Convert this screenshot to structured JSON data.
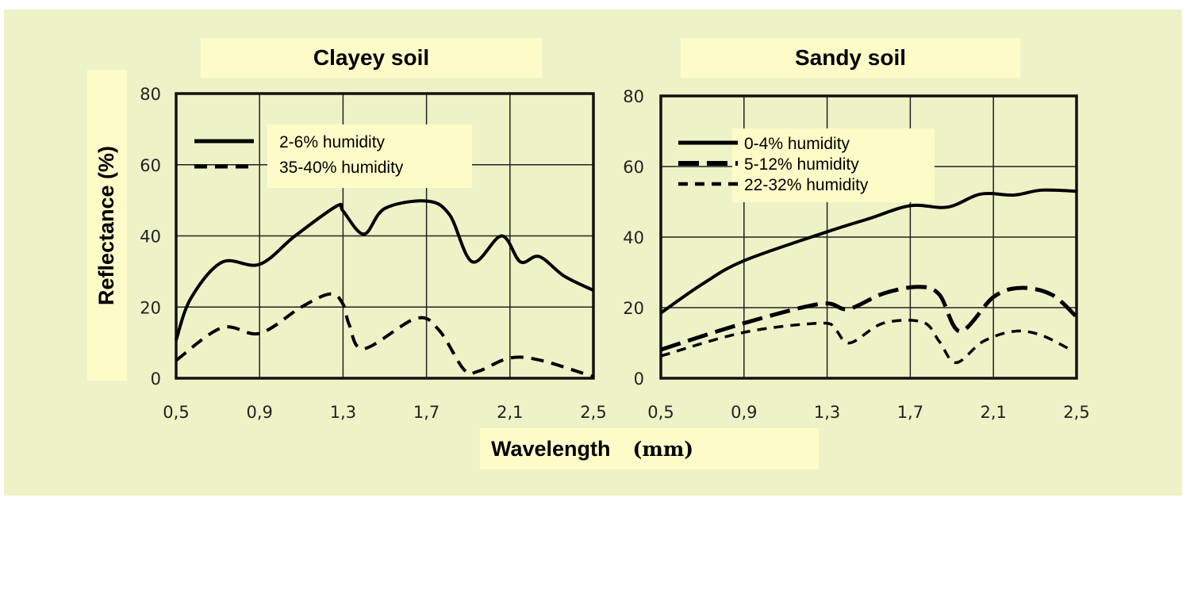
{
  "xlabel": "Wavelength",
  "xunit": "(mm)",
  "ylabel": "Reflectance (%)",
  "colors": {
    "background": "#eef3c7",
    "label_box": "#fdfcc9",
    "line": "#000000",
    "grid": "#111111"
  },
  "chart_data": [
    {
      "type": "line",
      "title": "Clayey soil",
      "xlabel": "Wavelength (mm)",
      "ylabel": "Reflectance (%)",
      "xlim": [
        0.5,
        2.5
      ],
      "ylim": [
        0,
        80
      ],
      "xticks": [
        "0,5",
        "0,9",
        "1,3",
        "1,7",
        "2,1",
        "2,5"
      ],
      "xtick_values": [
        0.5,
        0.9,
        1.3,
        1.7,
        2.1,
        2.5
      ],
      "yticks": [
        "0",
        "20",
        "40",
        "60",
        "80"
      ],
      "ytick_values": [
        0,
        20,
        40,
        60,
        80
      ],
      "grid": true,
      "legend_position": "top-left",
      "series": [
        {
          "name": "2-6% humidity",
          "style": "solid",
          "x": [
            0.5,
            0.57,
            0.72,
            0.9,
            1.07,
            1.27,
            1.3,
            1.4,
            1.5,
            1.7,
            1.81,
            1.92,
            2.06,
            2.15,
            2.24,
            2.36,
            2.5
          ],
          "y": [
            10.7,
            22.4,
            32.6,
            32,
            40,
            48.4,
            47,
            40.5,
            47.7,
            49.8,
            46,
            32.7,
            40,
            32.7,
            34.2,
            28.7,
            24.7
          ]
        },
        {
          "name": "35-40% humidity",
          "style": "dashed",
          "x": [
            0.5,
            0.72,
            0.9,
            1.1,
            1.24,
            1.3,
            1.33,
            1.4,
            1.65,
            1.76,
            1.88,
            1.95,
            2.1,
            2.25,
            2.5
          ],
          "y": [
            5,
            14.2,
            12.6,
            20,
            23.7,
            20.8,
            15,
            8.3,
            16.8,
            13.5,
            2.4,
            2,
            5.7,
            5,
            0.4
          ]
        }
      ]
    },
    {
      "type": "line",
      "title": "Sandy soil",
      "xlabel": "Wavelength (mm)",
      "ylabel": "Reflectance (%)",
      "xlim": [
        0.5,
        2.5
      ],
      "ylim": [
        0,
        80
      ],
      "xticks": [
        "0,5",
        "0,9",
        "1,3",
        "1,7",
        "2,1",
        "2,5"
      ],
      "xtick_values": [
        0.5,
        0.9,
        1.3,
        1.7,
        2.1,
        2.5
      ],
      "yticks": [
        "0",
        "20",
        "40",
        "60",
        "80"
      ],
      "ytick_values": [
        0,
        20,
        40,
        60,
        80
      ],
      "grid": true,
      "legend_position": "top-left",
      "series": [
        {
          "name": "0-4% humidity",
          "style": "solid",
          "x": [
            0.5,
            0.7,
            0.9,
            1.3,
            1.5,
            1.7,
            1.88,
            2.04,
            2.2,
            2.33,
            2.5
          ],
          "y": [
            18.5,
            26.7,
            33.3,
            41.5,
            45.2,
            48.9,
            48.5,
            52.2,
            51.9,
            53.3,
            53
          ]
        },
        {
          "name": "5-12% humidity",
          "style": "long-dash",
          "x": [
            0.5,
            0.9,
            1.27,
            1.4,
            1.57,
            1.74,
            1.84,
            1.94,
            2.1,
            2.23,
            2.38,
            2.5
          ],
          "y": [
            8.1,
            15.6,
            21.1,
            19.6,
            24,
            25.9,
            23.7,
            13.3,
            23,
            25.6,
            23.7,
            17.4
          ]
        },
        {
          "name": "22-32% humidity",
          "style": "short-dash",
          "x": [
            0.5,
            0.9,
            1.27,
            1.34,
            1.41,
            1.57,
            1.76,
            1.84,
            1.92,
            2.05,
            2.2,
            2.33,
            2.48
          ],
          "y": [
            6.3,
            13,
            15.6,
            13.7,
            10,
            15.6,
            15.9,
            10.4,
            4.4,
            10.4,
            13.3,
            12.2,
            7.8
          ]
        }
      ]
    }
  ]
}
